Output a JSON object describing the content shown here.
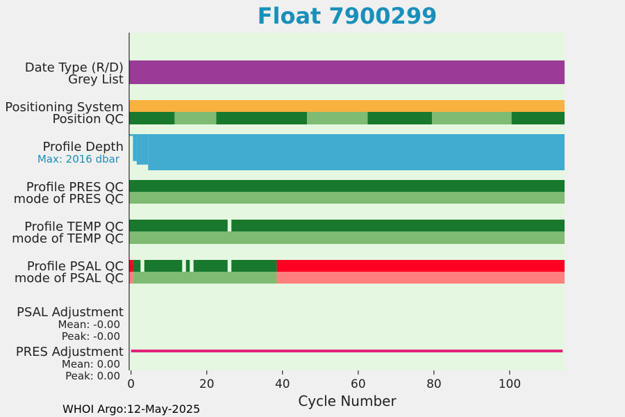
{
  "chart_data": {
    "type": "bar",
    "title": "Float 7900299",
    "title_color": "#1a8fba",
    "xlabel": "Cycle Number",
    "xlim": [
      -0.5,
      114.5
    ],
    "xticks": [
      0,
      20,
      40,
      60,
      80,
      100
    ],
    "background": "#e5f7e0",
    "footer": "WHOI Argo:12-May-2025",
    "row_labels": {
      "date_type": "Date Type (R/D)",
      "grey_list": "Grey List",
      "positioning_system": "Positioning System",
      "position_qc": "Position QC",
      "profile_depth": "Profile Depth",
      "max_depth": "Max: 2016 dbar",
      "pres_qc": "Profile PRES QC",
      "pres_mode": "mode of PRES QC",
      "temp_qc": "Profile TEMP QC",
      "temp_mode": "mode of TEMP QC",
      "psal_qc": "Profile PSAL QC",
      "psal_mode": "mode of PSAL QC",
      "psal_adj": "PSAL Adjustment",
      "psal_mean": "Mean: -0.00",
      "psal_peak": "Peak: -0.00",
      "pres_adj": "PRES Adjustment",
      "pres_mean": "Mean: 0.00",
      "pres_peak": "Peak: 0.00"
    },
    "colors": {
      "purple": "#9a3c97",
      "orange": "#f9b140",
      "dark_green": "#18782e",
      "light_green": "#7fbb72",
      "blue": "#42abd0",
      "red": "#ff0022",
      "light_red": "#ff7f7f",
      "magenta": "#e0217a",
      "max_label": "#1a8fba"
    },
    "bands": [
      {
        "row": "date_type",
        "segments": [
          {
            "x0": -0.5,
            "x1": 114.5,
            "color": "purple"
          }
        ]
      },
      {
        "row": "positioning_system",
        "segments": [
          {
            "x0": -0.5,
            "x1": 114.5,
            "color": "orange"
          }
        ]
      },
      {
        "row": "position_qc",
        "segments": [
          {
            "x0": -0.5,
            "x1": 11.5,
            "color": "dark_green"
          },
          {
            "x0": 11.5,
            "x1": 22.5,
            "color": "light_green"
          },
          {
            "x0": 22.5,
            "x1": 46.5,
            "color": "dark_green"
          },
          {
            "x0": 46.5,
            "x1": 62.5,
            "color": "light_green"
          },
          {
            "x0": 62.5,
            "x1": 79.5,
            "color": "dark_green"
          },
          {
            "x0": 79.5,
            "x1": 100.5,
            "color": "light_green"
          },
          {
            "x0": 100.5,
            "x1": 114.5,
            "color": "dark_green"
          }
        ]
      },
      {
        "row": "pres_qc",
        "segments": [
          {
            "x0": -0.5,
            "x1": 114.5,
            "color": "dark_green"
          }
        ]
      },
      {
        "row": "pres_mode",
        "segments": [
          {
            "x0": -0.5,
            "x1": 114.5,
            "color": "light_green"
          }
        ]
      },
      {
        "row": "temp_qc",
        "segments": [
          {
            "x0": -0.5,
            "x1": 25.5,
            "color": "dark_green"
          },
          {
            "x0": 26.5,
            "x1": 114.5,
            "color": "dark_green"
          }
        ]
      },
      {
        "row": "temp_mode",
        "segments": [
          {
            "x0": -0.5,
            "x1": 114.5,
            "color": "light_green"
          }
        ]
      },
      {
        "row": "psal_qc",
        "segments": [
          {
            "x0": -0.5,
            "x1": 0.5,
            "color": "red"
          },
          {
            "x0": 0.5,
            "x1": 2.5,
            "color": "dark_green"
          },
          {
            "x0": 3.5,
            "x1": 13.5,
            "color": "dark_green"
          },
          {
            "x0": 14.5,
            "x1": 15.5,
            "color": "dark_green"
          },
          {
            "x0": 16.5,
            "x1": 25.5,
            "color": "dark_green"
          },
          {
            "x0": 26.5,
            "x1": 38.5,
            "color": "dark_green"
          },
          {
            "x0": 38.5,
            "x1": 114.5,
            "color": "red"
          }
        ]
      },
      {
        "row": "psal_mode",
        "segments": [
          {
            "x0": -0.5,
            "x1": 0.5,
            "color": "light_red"
          },
          {
            "x0": 0.5,
            "x1": 38.5,
            "color": "light_green"
          },
          {
            "x0": 38.5,
            "x1": 114.5,
            "color": "light_red"
          }
        ]
      }
    ],
    "profile_depth": {
      "max_dbar": 2016,
      "steps": [
        {
          "x0": -0.5,
          "x1": 0.5,
          "depth": 100
        },
        {
          "x0": 0.5,
          "x1": 1.5,
          "depth": 1500
        },
        {
          "x0": 1.5,
          "x1": 4.5,
          "depth": 1700
        },
        {
          "x0": 4.5,
          "x1": 114.5,
          "depth": 2016
        }
      ]
    },
    "pres_adjustment": {
      "x0": 0,
      "x1": 114,
      "value": 0.0,
      "color": "magenta"
    }
  }
}
